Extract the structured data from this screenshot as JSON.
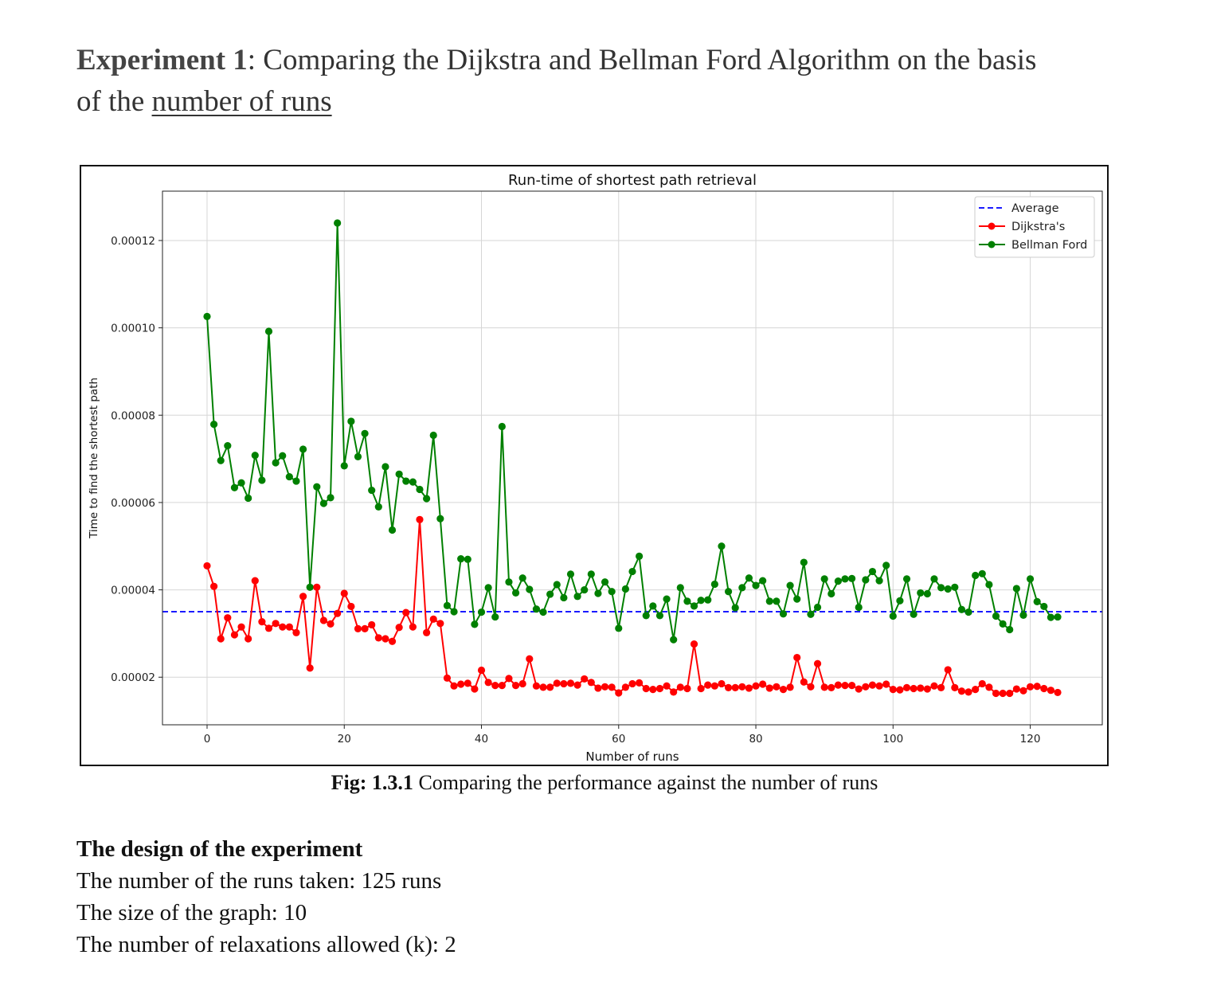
{
  "heading": {
    "bold": "Experiment 1",
    "rest_line1": ": Comparing the Dijkstra and Bellman Ford Algorithm on the basis",
    "rest_line2_prefix": "of the ",
    "underlined": "number of runs"
  },
  "caption": {
    "bold": "Fig: 1.3.1",
    "text": " Comparing the performance against the number of runs"
  },
  "design": {
    "title": "The design of the experiment",
    "lines": [
      "The number of the runs taken: 125 runs",
      "The size of the graph: 10",
      "The number of relaxations allowed (k): 2"
    ]
  },
  "chart_data": {
    "type": "line",
    "title": "Run-time of shortest path retrieval",
    "xlabel": "Number of runs",
    "ylabel": "Time to find the shortest path",
    "xlim": [
      -6.5,
      130.5
    ],
    "ylim": [
      9.1e-06,
      0.0001313
    ],
    "xticks": [
      0,
      20,
      40,
      60,
      80,
      100,
      120
    ],
    "xtick_labels": [
      "0",
      "20",
      "40",
      "60",
      "80",
      "100",
      "120"
    ],
    "yticks": [
      2e-05,
      4e-05,
      6e-05,
      8e-05,
      0.0001,
      0.00012
    ],
    "ytick_labels": [
      "0.00002",
      "0.00004",
      "0.00006",
      "0.00008",
      "0.00010",
      "0.00012"
    ],
    "grid": true,
    "legend_position": "upper right",
    "average": {
      "name": "Average",
      "value": 3.5e-05,
      "color": "#1a1aff",
      "style": "dashed"
    },
    "series": [
      {
        "name": "Dijkstra's",
        "color": "#ff0000",
        "values": [
          4.55e-05,
          4.08e-05,
          2.88e-05,
          3.36e-05,
          2.97e-05,
          3.15e-05,
          2.88e-05,
          4.21e-05,
          3.27e-05,
          3.12e-05,
          3.23e-05,
          3.15e-05,
          3.15e-05,
          3.02e-05,
          3.85e-05,
          2.21e-05,
          4.06e-05,
          3.3e-05,
          3.22e-05,
          3.46e-05,
          3.92e-05,
          3.62e-05,
          3.11e-05,
          3.11e-05,
          3.2e-05,
          2.9e-05,
          2.88e-05,
          2.82e-05,
          3.14e-05,
          3.48e-05,
          3.15e-05,
          5.61e-05,
          3.02e-05,
          3.33e-05,
          3.23e-05,
          1.98e-05,
          1.8e-05,
          1.84e-05,
          1.86e-05,
          1.73e-05,
          2.16e-05,
          1.88e-05,
          1.81e-05,
          1.81e-05,
          1.97e-05,
          1.81e-05,
          1.85e-05,
          2.42e-05,
          1.8e-05,
          1.77e-05,
          1.77e-05,
          1.86e-05,
          1.85e-05,
          1.86e-05,
          1.82e-05,
          1.96e-05,
          1.88e-05,
          1.75e-05,
          1.78e-05,
          1.77e-05,
          1.64e-05,
          1.77e-05,
          1.85e-05,
          1.87e-05,
          1.74e-05,
          1.72e-05,
          1.74e-05,
          1.8e-05,
          1.66e-05,
          1.77e-05,
          1.74e-05,
          2.76e-05,
          1.74e-05,
          1.82e-05,
          1.8e-05,
          1.85e-05,
          1.76e-05,
          1.76e-05,
          1.78e-05,
          1.75e-05,
          1.8e-05,
          1.84e-05,
          1.75e-05,
          1.78e-05,
          1.72e-05,
          1.77e-05,
          2.45e-05,
          1.89e-05,
          1.78e-05,
          2.31e-05,
          1.77e-05,
          1.76e-05,
          1.82e-05,
          1.81e-05,
          1.81e-05,
          1.73e-05,
          1.78e-05,
          1.82e-05,
          1.8e-05,
          1.84e-05,
          1.72e-05,
          1.71e-05,
          1.76e-05,
          1.74e-05,
          1.75e-05,
          1.73e-05,
          1.8e-05,
          1.76e-05,
          2.17e-05,
          1.76e-05,
          1.68e-05,
          1.66e-05,
          1.72e-05,
          1.85e-05,
          1.77e-05,
          1.63e-05,
          1.63e-05,
          1.63e-05,
          1.73e-05,
          1.69e-05,
          1.78e-05,
          1.79e-05,
          1.74e-05,
          1.7e-05,
          1.65e-05
        ]
      },
      {
        "name": "Bellman Ford",
        "color": "#008000",
        "values": [
          0.0001026,
          7.79e-05,
          6.96e-05,
          7.3e-05,
          6.34e-05,
          6.45e-05,
          6.1e-05,
          7.08e-05,
          6.51e-05,
          9.92e-05,
          6.91e-05,
          7.07e-05,
          6.59e-05,
          6.49e-05,
          7.22e-05,
          4.06e-05,
          6.36e-05,
          5.98e-05,
          6.11e-05,
          0.000124,
          6.84e-05,
          7.86e-05,
          7.05e-05,
          7.58e-05,
          6.28e-05,
          5.9e-05,
          6.82e-05,
          5.37e-05,
          6.65e-05,
          6.49e-05,
          6.47e-05,
          6.3e-05,
          6.09e-05,
          7.54e-05,
          5.63e-05,
          3.64e-05,
          3.5e-05,
          4.71e-05,
          4.7e-05,
          3.21e-05,
          3.49e-05,
          4.05e-05,
          3.38e-05,
          7.74e-05,
          4.18e-05,
          3.93e-05,
          4.27e-05,
          4.01e-05,
          3.56e-05,
          3.49e-05,
          3.9e-05,
          4.12e-05,
          3.82e-05,
          4.36e-05,
          3.85e-05,
          4e-05,
          4.36e-05,
          3.92e-05,
          4.18e-05,
          3.96e-05,
          3.12e-05,
          4.02e-05,
          4.42e-05,
          4.77e-05,
          3.41e-05,
          3.63e-05,
          3.41e-05,
          3.79e-05,
          2.86e-05,
          4.05e-05,
          3.74e-05,
          3.63e-05,
          3.76e-05,
          3.77e-05,
          4.13e-05,
          5e-05,
          3.96e-05,
          3.59e-05,
          4.05e-05,
          4.27e-05,
          4.1e-05,
          4.21e-05,
          3.74e-05,
          3.74e-05,
          3.45e-05,
          4.1e-05,
          3.79e-05,
          4.63e-05,
          3.44e-05,
          3.6e-05,
          4.25e-05,
          3.91e-05,
          4.2e-05,
          4.25e-05,
          4.26e-05,
          3.6e-05,
          4.23e-05,
          4.42e-05,
          4.21e-05,
          4.56e-05,
          3.4e-05,
          3.75e-05,
          4.25e-05,
          3.44e-05,
          3.93e-05,
          3.91e-05,
          4.25e-05,
          4.05e-05,
          4.02e-05,
          4.06e-05,
          3.55e-05,
          3.49e-05,
          4.33e-05,
          4.37e-05,
          4.12e-05,
          3.4e-05,
          3.22e-05,
          3.09e-05,
          4.03e-05,
          3.42e-05,
          4.25e-05,
          3.73e-05,
          3.62e-05,
          3.37e-05,
          3.38e-05
        ]
      }
    ]
  }
}
